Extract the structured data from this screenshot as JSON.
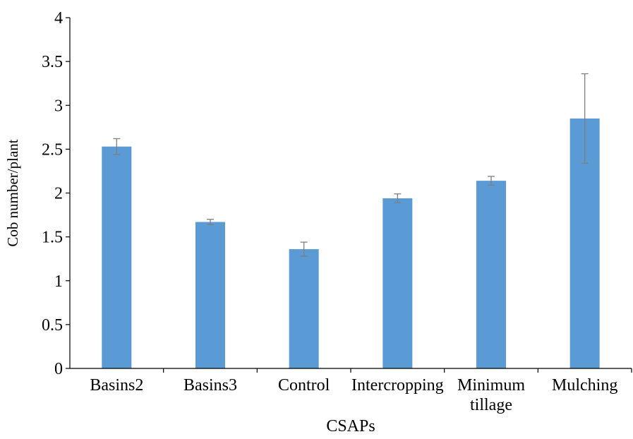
{
  "chart_data": {
    "type": "bar",
    "categories": [
      "Basins2",
      "Basins3",
      "Control",
      "Intercropping",
      "Minimum tillage",
      "Mulching"
    ],
    "category_label_lines": [
      [
        "Basins2"
      ],
      [
        "Basins3"
      ],
      [
        "Control"
      ],
      [
        "Intercropping"
      ],
      [
        "Minimum",
        "tillage"
      ],
      [
        "Mulching"
      ]
    ],
    "values": [
      2.53,
      1.67,
      1.36,
      1.94,
      2.14,
      2.85
    ],
    "error": [
      0.09,
      0.03,
      0.08,
      0.05,
      0.05,
      0.51
    ],
    "title": "",
    "xlabel": "CSAPs",
    "ylabel": "Cob number/plant",
    "ylim": [
      0,
      4
    ],
    "yticks": [
      "0",
      "0.5",
      "1",
      "1.5",
      "2",
      "2.5",
      "3",
      "3.5",
      "4"
    ],
    "grid": false,
    "bar_color": "#5b9bd5",
    "error_bar_color": "#7f7f7f"
  }
}
